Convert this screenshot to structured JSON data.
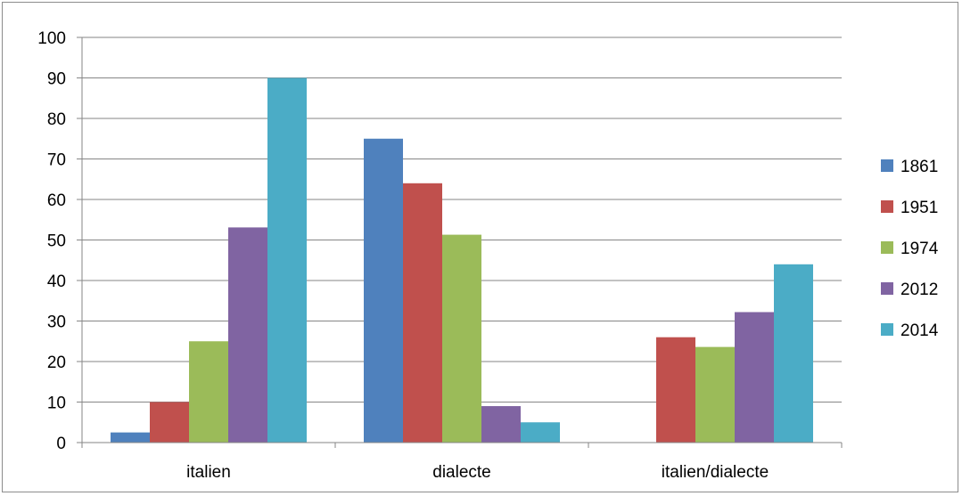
{
  "chart_data": {
    "type": "bar",
    "categories": [
      "italien",
      "dialecte",
      "italien/dialecte"
    ],
    "series": [
      {
        "name": "1861",
        "color": "#4f81bd",
        "values": [
          2.5,
          75,
          0
        ]
      },
      {
        "name": "1951",
        "color": "#c0504d",
        "values": [
          10,
          64,
          26
        ]
      },
      {
        "name": "1974",
        "color": "#9bbb59",
        "values": [
          25,
          51.3,
          23.6
        ]
      },
      {
        "name": "2012",
        "color": "#8064a2",
        "values": [
          53.1,
          9,
          32.2
        ]
      },
      {
        "name": "2014",
        "color": "#4bacc6",
        "values": [
          90,
          5,
          44
        ]
      }
    ],
    "ylim": [
      0,
      100
    ],
    "yticks": [
      "0",
      "10",
      "20",
      "30",
      "40",
      "50",
      "60",
      "70",
      "80",
      "90",
      "100"
    ],
    "grid": true,
    "legend_position": "right",
    "gridline_color": "#868686",
    "axis_color": "#868686"
  }
}
